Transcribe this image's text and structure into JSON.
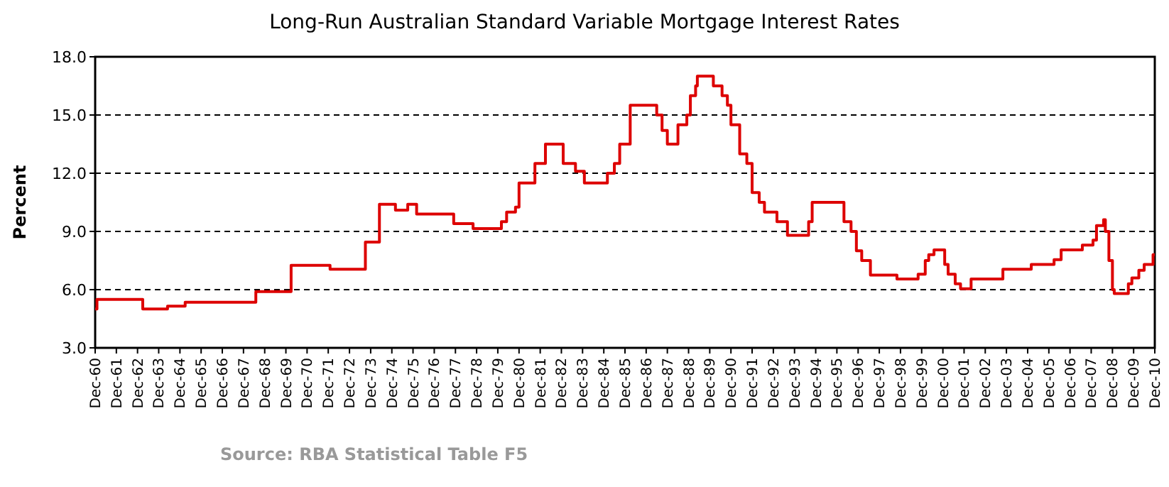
{
  "chart_data": {
    "type": "step",
    "title": "Long-Run Australian Standard Variable Mortgage Interest Rates",
    "ylabel": "Percent",
    "annotations": [
      "Source: RBA Statistical Table F5"
    ],
    "x": [
      "1960-12",
      "1961-01",
      "1963-03",
      "1964-05",
      "1965-03",
      "1968-07",
      "1970-03",
      "1972-01",
      "1973-09",
      "1974-05",
      "1975-02",
      "1975-09",
      "1976-02",
      "1977-11",
      "1978-10",
      "1980-02",
      "1980-05",
      "1980-10",
      "1980-12",
      "1981-09",
      "1982-03",
      "1983-01",
      "1983-08",
      "1984-01",
      "1985-02",
      "1985-06",
      "1985-09",
      "1986-03",
      "1987-06",
      "1987-09",
      "1987-12",
      "1988-06",
      "1988-11",
      "1989-01",
      "1989-04",
      "1989-05",
      "1990-02",
      "1990-07",
      "1990-10",
      "1990-12",
      "1991-05",
      "1991-09",
      "1991-12",
      "1992-04",
      "1992-07",
      "1993-02",
      "1993-08",
      "1994-08",
      "1994-10",
      "1996-04",
      "1996-08",
      "1996-11",
      "1997-02",
      "1997-07",
      "1998-10",
      "1999-10",
      "2000-02",
      "2000-04",
      "2000-07",
      "2001-01",
      "2001-03",
      "2001-07",
      "2001-10",
      "2002-04",
      "2003-10",
      "2005-02",
      "2006-03",
      "2006-07",
      "2007-07",
      "2008-01",
      "2008-03",
      "2008-07",
      "2008-08",
      "2008-10",
      "2008-12",
      "2009-01",
      "2009-09",
      "2009-11",
      "2010-03",
      "2010-06",
      "2010-11",
      "2010-12"
    ],
    "series": [
      {
        "color": "#dd0000",
        "values": [
          5.0,
          5.5,
          5.0,
          5.15,
          5.35,
          5.9,
          7.25,
          7.05,
          8.45,
          10.4,
          10.1,
          10.4,
          9.9,
          9.4,
          9.15,
          9.5,
          10.0,
          10.25,
          11.5,
          12.5,
          13.5,
          12.5,
          12.1,
          11.5,
          12.0,
          12.5,
          13.5,
          15.5,
          15.0,
          14.2,
          13.5,
          14.5,
          15.0,
          16.0,
          16.5,
          17.0,
          16.5,
          16.0,
          15.5,
          14.5,
          13.0,
          12.5,
          11.0,
          10.5,
          10.0,
          9.5,
          8.8,
          9.5,
          10.5,
          9.5,
          9.0,
          8.0,
          7.5,
          6.75,
          6.55,
          6.8,
          7.5,
          7.8,
          8.05,
          7.3,
          6.8,
          6.3,
          6.05,
          6.55,
          7.05,
          7.3,
          7.55,
          8.05,
          8.3,
          8.55,
          9.3,
          9.6,
          9.0,
          7.5,
          6.0,
          5.8,
          6.3,
          6.6,
          7.0,
          7.3,
          7.8,
          7.8
        ]
      }
    ],
    "xlim": [
      "1960-12",
      "2010-12"
    ],
    "xticks": [
      {
        "value": "1960-12",
        "label": "Dec-60"
      },
      {
        "value": "1961-12",
        "label": "Dec-61"
      },
      {
        "value": "1962-12",
        "label": "Dec-62"
      },
      {
        "value": "1963-12",
        "label": "Dec-63"
      },
      {
        "value": "1964-12",
        "label": "Dec-64"
      },
      {
        "value": "1965-12",
        "label": "Dec-65"
      },
      {
        "value": "1966-12",
        "label": "Dec-66"
      },
      {
        "value": "1967-12",
        "label": "Dec-67"
      },
      {
        "value": "1968-12",
        "label": "Dec-68"
      },
      {
        "value": "1969-12",
        "label": "Dec-69"
      },
      {
        "value": "1970-12",
        "label": "Dec-70"
      },
      {
        "value": "1971-12",
        "label": "Dec-71"
      },
      {
        "value": "1972-12",
        "label": "Dec-72"
      },
      {
        "value": "1973-12",
        "label": "Dec-73"
      },
      {
        "value": "1974-12",
        "label": "Dec-74"
      },
      {
        "value": "1975-12",
        "label": "Dec-75"
      },
      {
        "value": "1976-12",
        "label": "Dec-76"
      },
      {
        "value": "1977-12",
        "label": "Dec-77"
      },
      {
        "value": "1978-12",
        "label": "Dec-78"
      },
      {
        "value": "1979-12",
        "label": "Dec-79"
      },
      {
        "value": "1980-12",
        "label": "Dec-80"
      },
      {
        "value": "1981-12",
        "label": "Dec-81"
      },
      {
        "value": "1982-12",
        "label": "Dec-82"
      },
      {
        "value": "1983-12",
        "label": "Dec-83"
      },
      {
        "value": "1984-12",
        "label": "Dec-84"
      },
      {
        "value": "1985-12",
        "label": "Dec-85"
      },
      {
        "value": "1986-12",
        "label": "Dec-86"
      },
      {
        "value": "1987-12",
        "label": "Dec-87"
      },
      {
        "value": "1988-12",
        "label": "Dec-88"
      },
      {
        "value": "1989-12",
        "label": "Dec-89"
      },
      {
        "value": "1990-12",
        "label": "Dec-90"
      },
      {
        "value": "1991-12",
        "label": "Dec-91"
      },
      {
        "value": "1992-12",
        "label": "Dec-92"
      },
      {
        "value": "1993-12",
        "label": "Dec-93"
      },
      {
        "value": "1994-12",
        "label": "Dec-94"
      },
      {
        "value": "1995-12",
        "label": "Dec-95"
      },
      {
        "value": "1996-12",
        "label": "Dec-96"
      },
      {
        "value": "1997-12",
        "label": "Dec-97"
      },
      {
        "value": "1998-12",
        "label": "Dec-98"
      },
      {
        "value": "1999-12",
        "label": "Dec-99"
      },
      {
        "value": "2000-12",
        "label": "Dec-00"
      },
      {
        "value": "2001-12",
        "label": "Dec-01"
      },
      {
        "value": "2002-12",
        "label": "Dec-02"
      },
      {
        "value": "2003-12",
        "label": "Dec-03"
      },
      {
        "value": "2004-12",
        "label": "Dec-04"
      },
      {
        "value": "2005-12",
        "label": "Dec-05"
      },
      {
        "value": "2006-12",
        "label": "Dec-06"
      },
      {
        "value": "2007-12",
        "label": "Dec-07"
      },
      {
        "value": "2008-12",
        "label": "Dec-08"
      },
      {
        "value": "2009-12",
        "label": "Dec-09"
      },
      {
        "value": "2010-12",
        "label": "Dec-10"
      }
    ],
    "ylim": [
      3,
      18
    ],
    "yticks": [
      {
        "value": 3,
        "label": "3.0"
      },
      {
        "value": 6,
        "label": "6.0"
      },
      {
        "value": 9,
        "label": "9.0"
      },
      {
        "value": 12,
        "label": "12.0"
      },
      {
        "value": 15,
        "label": "15.0"
      },
      {
        "value": 18,
        "label": "18.0"
      }
    ],
    "grid": "y",
    "line_style": "solid"
  }
}
